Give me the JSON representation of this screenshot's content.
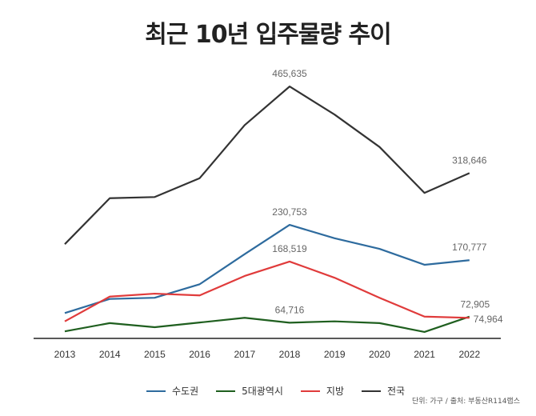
{
  "title": "최근 10년 입주물량 추이",
  "source": "단위: 가구 / 출처: 부동산R114랩스",
  "chart_data": {
    "type": "line",
    "title": "최근 10년 입주물량 추이",
    "categories": [
      "2013",
      "2014",
      "2015",
      "2016",
      "2017",
      "2018",
      "2019",
      "2020",
      "2021",
      "2022"
    ],
    "ylim": [
      0,
      480000
    ],
    "grid": false,
    "legend": "bottom",
    "series": [
      {
        "name": "수도권",
        "color": "#2e6b9e",
        "values": [
          81000,
          105000,
          107000,
          130000,
          181000,
          230753,
          208000,
          190000,
          163000,
          170777
        ],
        "labels": [
          {
            "index": 5,
            "text": "230,753"
          },
          {
            "index": 9,
            "text": "170,777"
          }
        ]
      },
      {
        "name": "5대광역시",
        "color": "#1f5f1f",
        "values": [
          50000,
          64000,
          57000,
          65000,
          73000,
          64716,
          67000,
          64000,
          49000,
          74964
        ],
        "labels": [
          {
            "index": 5,
            "text": "64,716"
          },
          {
            "index": 9,
            "text": "74,964"
          }
        ]
      },
      {
        "name": "지방",
        "color": "#e03b3b",
        "values": [
          67000,
          109000,
          114000,
          111000,
          144000,
          168519,
          141000,
          107000,
          75000,
          72905
        ],
        "labels": [
          {
            "index": 5,
            "text": "168,519"
          },
          {
            "index": 9,
            "text": "72,905"
          }
        ]
      },
      {
        "name": "전국",
        "color": "#333333",
        "values": [
          198000,
          276000,
          278000,
          310000,
          400000,
          465635,
          418000,
          363000,
          285000,
          318646
        ],
        "labels": [
          {
            "index": 5,
            "text": "465,635"
          },
          {
            "index": 9,
            "text": "318,646"
          }
        ]
      }
    ]
  }
}
